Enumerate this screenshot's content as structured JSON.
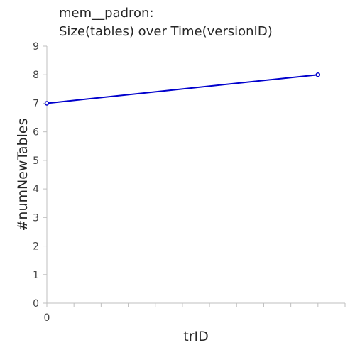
{
  "chart_data": {
    "type": "line",
    "title_lines": [
      "mem__padron:",
      "Size(tables) over Time(versionID)"
    ],
    "xlabel": "trID",
    "ylabel": "#numNewTables",
    "x_tick_labels": [
      {
        "x": 0,
        "label": "0"
      }
    ],
    "xlim": [
      0,
      5.5
    ],
    "ylim": [
      0,
      9
    ],
    "y_ticks": [
      0,
      1,
      2,
      3,
      4,
      5,
      6,
      7,
      8,
      9
    ],
    "grid": false,
    "series": [
      {
        "color": "#0000cc",
        "x": [
          0,
          5
        ],
        "y": [
          7,
          8
        ]
      }
    ]
  }
}
